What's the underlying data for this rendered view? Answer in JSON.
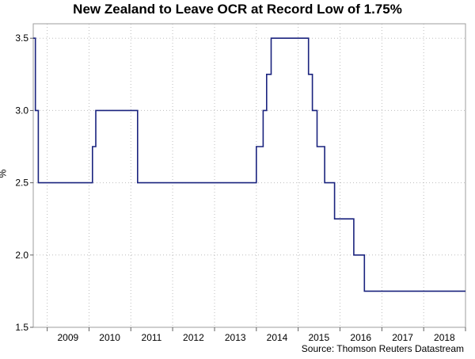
{
  "chart_data": {
    "type": "line",
    "title": "New Zealand to Leave OCR at Record Low of 1.75%",
    "ylabel": "%",
    "xlabel": "",
    "source": "Source: Thomson Reuters Datastream",
    "ylim": [
      1.5,
      3.6
    ],
    "xlim": [
      "2008-09-01",
      "2019-01-01"
    ],
    "yticks": [
      "1.5",
      "2.0",
      "2.5",
      "3.0",
      "3.5"
    ],
    "xticks": [
      "2009",
      "2010",
      "2011",
      "2012",
      "2013",
      "2014",
      "2015",
      "2016",
      "2017",
      "2018"
    ],
    "grid": true,
    "line_color": "#1a237e",
    "series": [
      {
        "x": [
          "2008-09-01",
          "2008-09-20",
          "2008-10-15",
          "2009-12-31",
          "2010-01-31",
          "2010-03-01",
          "2011-03-01",
          "2013-12-01",
          "2014-01-01",
          "2014-03-01",
          "2014-04-01",
          "2014-05-10",
          "2015-04-01",
          "2015-05-05",
          "2015-06-15",
          "2015-08-20",
          "2015-11-15",
          "2016-05-01",
          "2016-08-01",
          "2019-01-01"
        ],
        "y": [
          3.5,
          3.0,
          2.5,
          2.5,
          2.75,
          3.0,
          2.5,
          2.5,
          2.75,
          3.0,
          3.25,
          3.5,
          3.25,
          3.0,
          2.75,
          2.5,
          2.25,
          2.0,
          1.75,
          1.75
        ]
      }
    ]
  }
}
